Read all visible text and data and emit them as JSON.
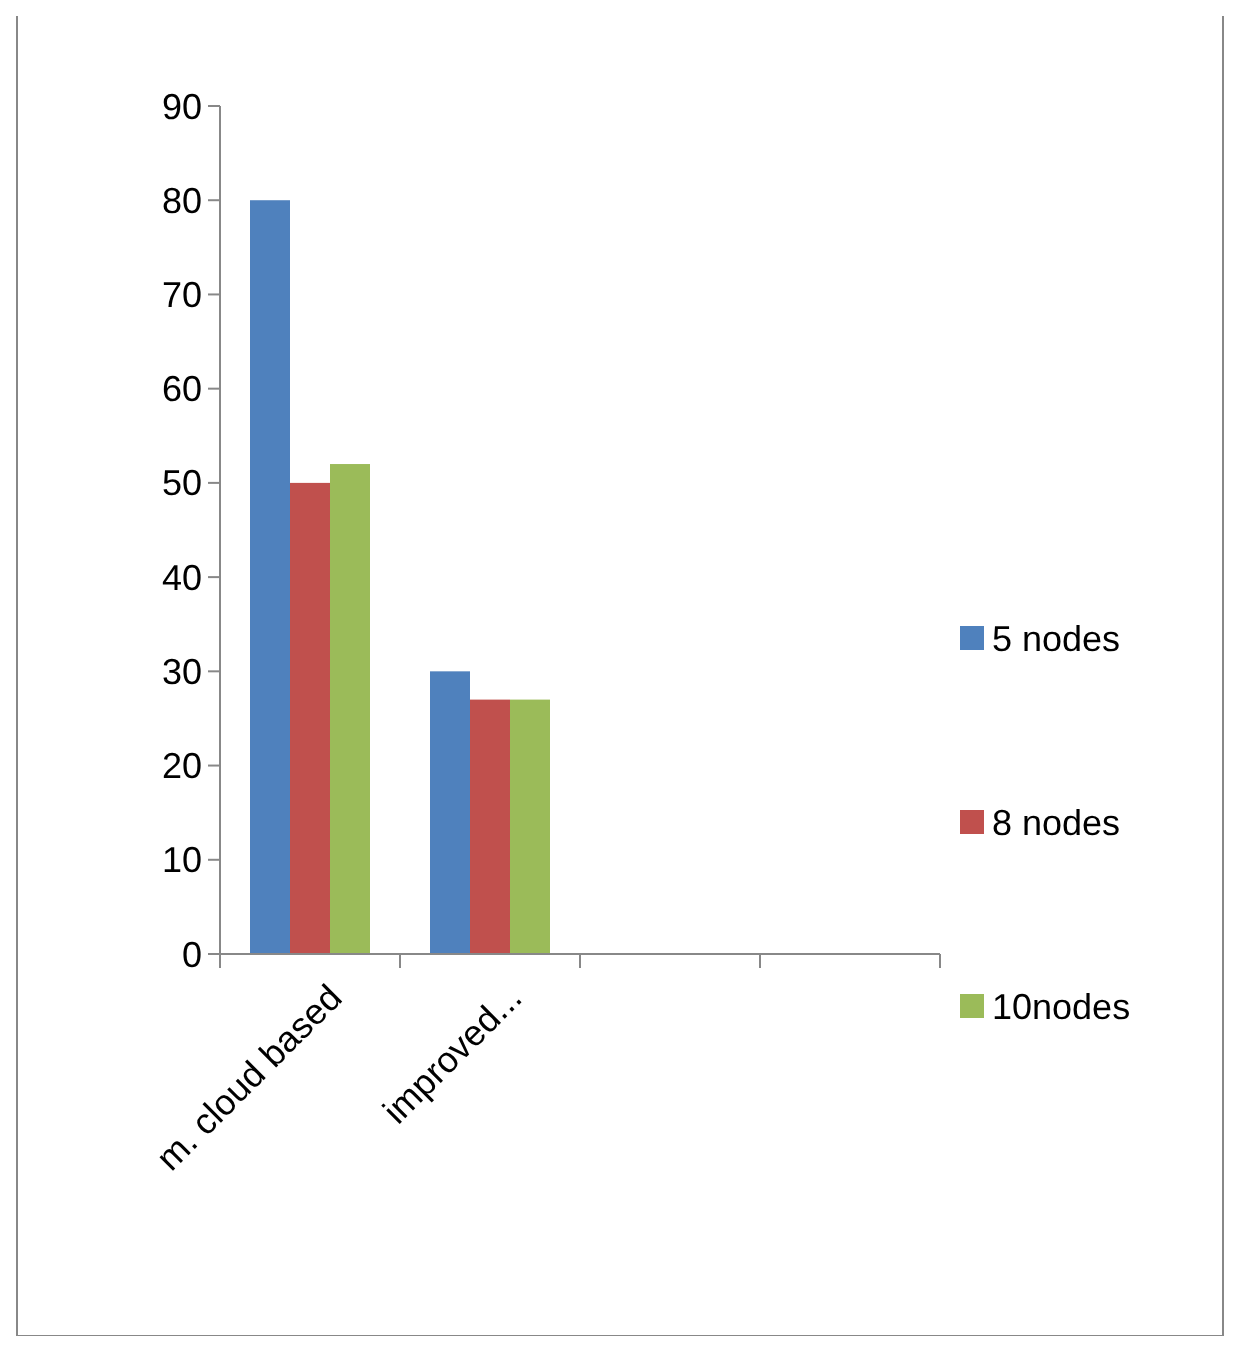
{
  "chart_data": {
    "type": "bar",
    "categories": [
      "m. cloud based",
      "improved...",
      null,
      null
    ],
    "series": [
      {
        "name": "5 nodes",
        "color": "#4f81bd",
        "values": [
          80,
          30,
          null,
          null
        ]
      },
      {
        "name": "8 nodes",
        "color": "#c0504d",
        "values": [
          50,
          27,
          null,
          null
        ]
      },
      {
        "name": "10nodes",
        "color": "#9bbb59",
        "values": [
          52,
          27,
          null,
          null
        ]
      }
    ],
    "ylim": [
      0,
      90
    ],
    "yticks": [
      0,
      10,
      20,
      30,
      40,
      50,
      60,
      70,
      80,
      90
    ],
    "grid": false,
    "legend": "right"
  }
}
